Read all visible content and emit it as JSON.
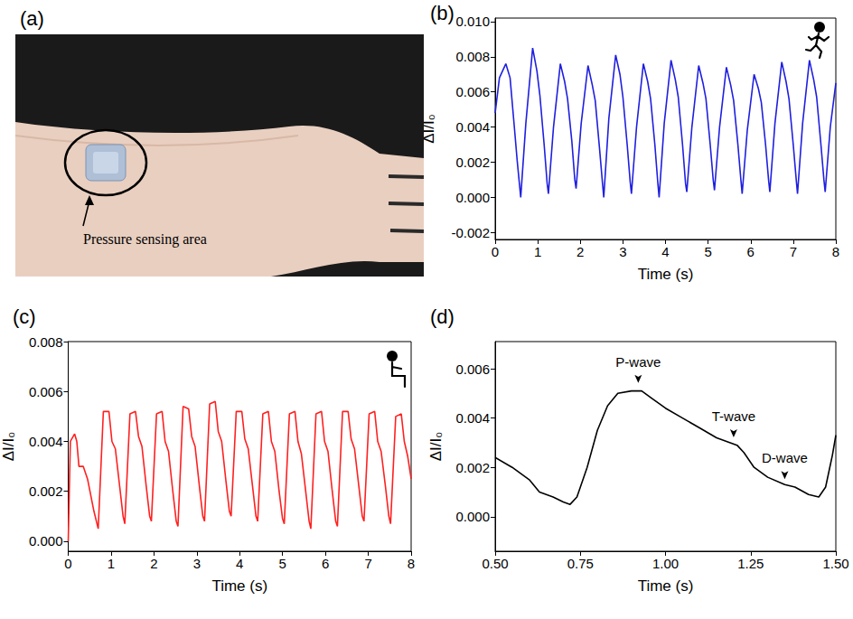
{
  "photo": {
    "panel_label": "(a)",
    "annotation": "Pressure sensing area"
  },
  "chart_data": [
    {
      "type": "line",
      "panel_label": "(b)",
      "x_label": "Time (s)",
      "y_label": "ΔI/I₀",
      "color": "#1f1fe0",
      "x": [
        0,
        0.1,
        0.25,
        0.35,
        0.45,
        0.52,
        0.6,
        0.72,
        0.88,
        0.98,
        1.05,
        1.15,
        1.22,
        1.25,
        1.37,
        1.53,
        1.63,
        1.7,
        1.8,
        1.87,
        1.9,
        2.02,
        2.18,
        2.28,
        2.35,
        2.45,
        2.52,
        2.55,
        2.67,
        2.83,
        2.93,
        3.0,
        3.1,
        3.17,
        3.2,
        3.32,
        3.48,
        3.58,
        3.65,
        3.75,
        3.82,
        3.85,
        3.97,
        4.13,
        4.23,
        4.3,
        4.4,
        4.47,
        4.5,
        4.62,
        4.78,
        4.88,
        4.95,
        5.05,
        5.12,
        5.15,
        5.27,
        5.43,
        5.53,
        5.6,
        5.7,
        5.77,
        5.8,
        5.92,
        6.08,
        6.18,
        6.25,
        6.35,
        6.42,
        6.45,
        6.57,
        6.73,
        6.83,
        6.9,
        7.0,
        7.07,
        7.1,
        7.22,
        7.38,
        7.48,
        7.55,
        7.65,
        7.72,
        7.75,
        7.87,
        8.0
      ],
      "values": [
        0.0048,
        0.0068,
        0.0076,
        0.0068,
        0.004,
        0.002,
        0.0,
        0.0042,
        0.0085,
        0.0072,
        0.0058,
        0.003,
        0.0008,
        0.0002,
        0.004,
        0.0076,
        0.0066,
        0.0056,
        0.0032,
        0.001,
        0.0005,
        0.0042,
        0.0075,
        0.0064,
        0.0055,
        0.0028,
        0.0008,
        0.0,
        0.0045,
        0.0081,
        0.007,
        0.0057,
        0.003,
        0.0009,
        0.0002,
        0.004,
        0.0076,
        0.0066,
        0.0056,
        0.003,
        0.0008,
        0.0,
        0.0042,
        0.0078,
        0.0067,
        0.0057,
        0.003,
        0.0008,
        0.0003,
        0.004,
        0.0075,
        0.0065,
        0.0056,
        0.003,
        0.001,
        0.0004,
        0.004,
        0.0074,
        0.0064,
        0.0055,
        0.003,
        0.001,
        0.0002,
        0.0038,
        0.007,
        0.0062,
        0.0054,
        0.003,
        0.001,
        0.0003,
        0.0042,
        0.0077,
        0.0066,
        0.0056,
        0.003,
        0.001,
        0.0002,
        0.0042,
        0.0078,
        0.0067,
        0.0057,
        0.003,
        0.001,
        0.0003,
        0.004,
        0.0065
      ],
      "xlim": [
        0,
        8
      ],
      "xticks": [
        0,
        1,
        2,
        3,
        4,
        5,
        6,
        7,
        8
      ],
      "ylim": [
        -0.0024,
        0.0102
      ],
      "yticks": [
        {
          "value": -0.002,
          "label": "-0.002"
        },
        {
          "value": 0,
          "label": "0.000"
        },
        {
          "value": 0.002,
          "label": "0.002"
        },
        {
          "value": 0.004,
          "label": "0.004"
        },
        {
          "value": 0.006,
          "label": "0.006"
        },
        {
          "value": 0.008,
          "label": "0.008"
        },
        {
          "value": 0.01,
          "label": "0.010"
        }
      ]
    },
    {
      "type": "line",
      "panel_label": "(c)",
      "x_label": "Time (s)",
      "y_label": "ΔI/I₀",
      "color": "#ff2020",
      "x": [
        0,
        0.05,
        0.15,
        0.2,
        0.25,
        0.35,
        0.45,
        0.6,
        0.7,
        0.82,
        0.95,
        1.02,
        1.1,
        1.2,
        1.28,
        1.32,
        1.44,
        1.57,
        1.64,
        1.72,
        1.82,
        1.9,
        1.94,
        2.06,
        2.19,
        2.26,
        2.34,
        2.44,
        2.52,
        2.56,
        2.68,
        2.81,
        2.88,
        2.96,
        3.06,
        3.14,
        3.18,
        3.3,
        3.43,
        3.5,
        3.58,
        3.68,
        3.76,
        3.8,
        3.92,
        4.05,
        4.12,
        4.2,
        4.3,
        4.38,
        4.42,
        4.54,
        4.67,
        4.74,
        4.82,
        4.92,
        5.0,
        5.04,
        5.16,
        5.29,
        5.36,
        5.44,
        5.54,
        5.62,
        5.66,
        5.78,
        5.91,
        5.98,
        6.06,
        6.16,
        6.24,
        6.28,
        6.4,
        6.53,
        6.6,
        6.68,
        6.78,
        6.86,
        6.9,
        7.02,
        7.15,
        7.22,
        7.3,
        7.4,
        7.48,
        7.52,
        7.64,
        7.77,
        7.84,
        7.92,
        8.0
      ],
      "values": [
        0.0,
        0.004,
        0.0043,
        0.004,
        0.003,
        0.003,
        0.0025,
        0.0012,
        0.0005,
        0.0052,
        0.0052,
        0.004,
        0.0037,
        0.0022,
        0.001,
        0.0007,
        0.0051,
        0.0052,
        0.0042,
        0.0038,
        0.0022,
        0.001,
        0.0008,
        0.0051,
        0.0052,
        0.004,
        0.0036,
        0.002,
        0.0008,
        0.0006,
        0.0054,
        0.0053,
        0.0042,
        0.0038,
        0.0022,
        0.001,
        0.0008,
        0.0055,
        0.0056,
        0.0044,
        0.004,
        0.0024,
        0.0012,
        0.001,
        0.0052,
        0.0052,
        0.0041,
        0.0037,
        0.0022,
        0.001,
        0.0008,
        0.0051,
        0.0052,
        0.004,
        0.0036,
        0.002,
        0.0009,
        0.0007,
        0.0051,
        0.0052,
        0.004,
        0.0035,
        0.002,
        0.0008,
        0.0005,
        0.0051,
        0.0052,
        0.004,
        0.0036,
        0.002,
        0.0008,
        0.0006,
        0.0052,
        0.0052,
        0.0041,
        0.0037,
        0.0022,
        0.001,
        0.0008,
        0.0051,
        0.0052,
        0.004,
        0.0036,
        0.0022,
        0.001,
        0.0007,
        0.005,
        0.0051,
        0.004,
        0.0034,
        0.0025
      ],
      "xlim": [
        0,
        8
      ],
      "xticks": [
        0,
        1,
        2,
        3,
        4,
        5,
        6,
        7,
        8
      ],
      "ylim": [
        -0.0004,
        0.008
      ],
      "yticks": [
        {
          "value": 0,
          "label": "0.000"
        },
        {
          "value": 0.002,
          "label": "0.002"
        },
        {
          "value": 0.004,
          "label": "0.004"
        },
        {
          "value": 0.006,
          "label": "0.006"
        },
        {
          "value": 0.008,
          "label": "0.008"
        }
      ]
    },
    {
      "type": "line",
      "panel_label": "(d)",
      "x_label": "Time (s)",
      "y_label": "ΔI/I₀",
      "color": "#000000",
      "x": [
        0.5,
        0.55,
        0.6,
        0.63,
        0.67,
        0.7,
        0.72,
        0.74,
        0.77,
        0.8,
        0.83,
        0.86,
        0.9,
        0.93,
        0.96,
        1.0,
        1.05,
        1.1,
        1.15,
        1.19,
        1.21,
        1.23,
        1.26,
        1.3,
        1.35,
        1.38,
        1.42,
        1.45,
        1.47,
        1.49,
        1.5
      ],
      "values": [
        0.0024,
        0.002,
        0.0015,
        0.001,
        0.0008,
        0.0006,
        0.0005,
        0.0008,
        0.002,
        0.0035,
        0.0045,
        0.005,
        0.0051,
        0.0051,
        0.0048,
        0.0044,
        0.004,
        0.0036,
        0.0032,
        0.003,
        0.0029,
        0.0026,
        0.002,
        0.0016,
        0.0013,
        0.0012,
        0.0009,
        0.0008,
        0.0012,
        0.0025,
        0.0033
      ],
      "xlim": [
        0.5,
        1.5
      ],
      "xticks": [
        {
          "value": 0.5,
          "label": "0.50"
        },
        {
          "value": 0.75,
          "label": "0.75"
        },
        {
          "value": 1,
          "label": "1.00"
        },
        {
          "value": 1.25,
          "label": "1.25"
        },
        {
          "value": 1.5,
          "label": "1.50"
        }
      ],
      "ylim": [
        -0.0014,
        0.0071
      ],
      "yticks": [
        {
          "value": 0,
          "label": "0.000"
        },
        {
          "value": 0.002,
          "label": "0.002"
        },
        {
          "value": 0.004,
          "label": "0.004"
        },
        {
          "value": 0.006,
          "label": "0.006"
        }
      ],
      "annotations": [
        {
          "text": "P-wave",
          "x": 0.92,
          "y": 0.0052
        },
        {
          "text": "T-wave",
          "x": 1.2,
          "y": 0.003
        },
        {
          "text": "D-wave",
          "x": 1.35,
          "y": 0.0013
        }
      ]
    }
  ]
}
